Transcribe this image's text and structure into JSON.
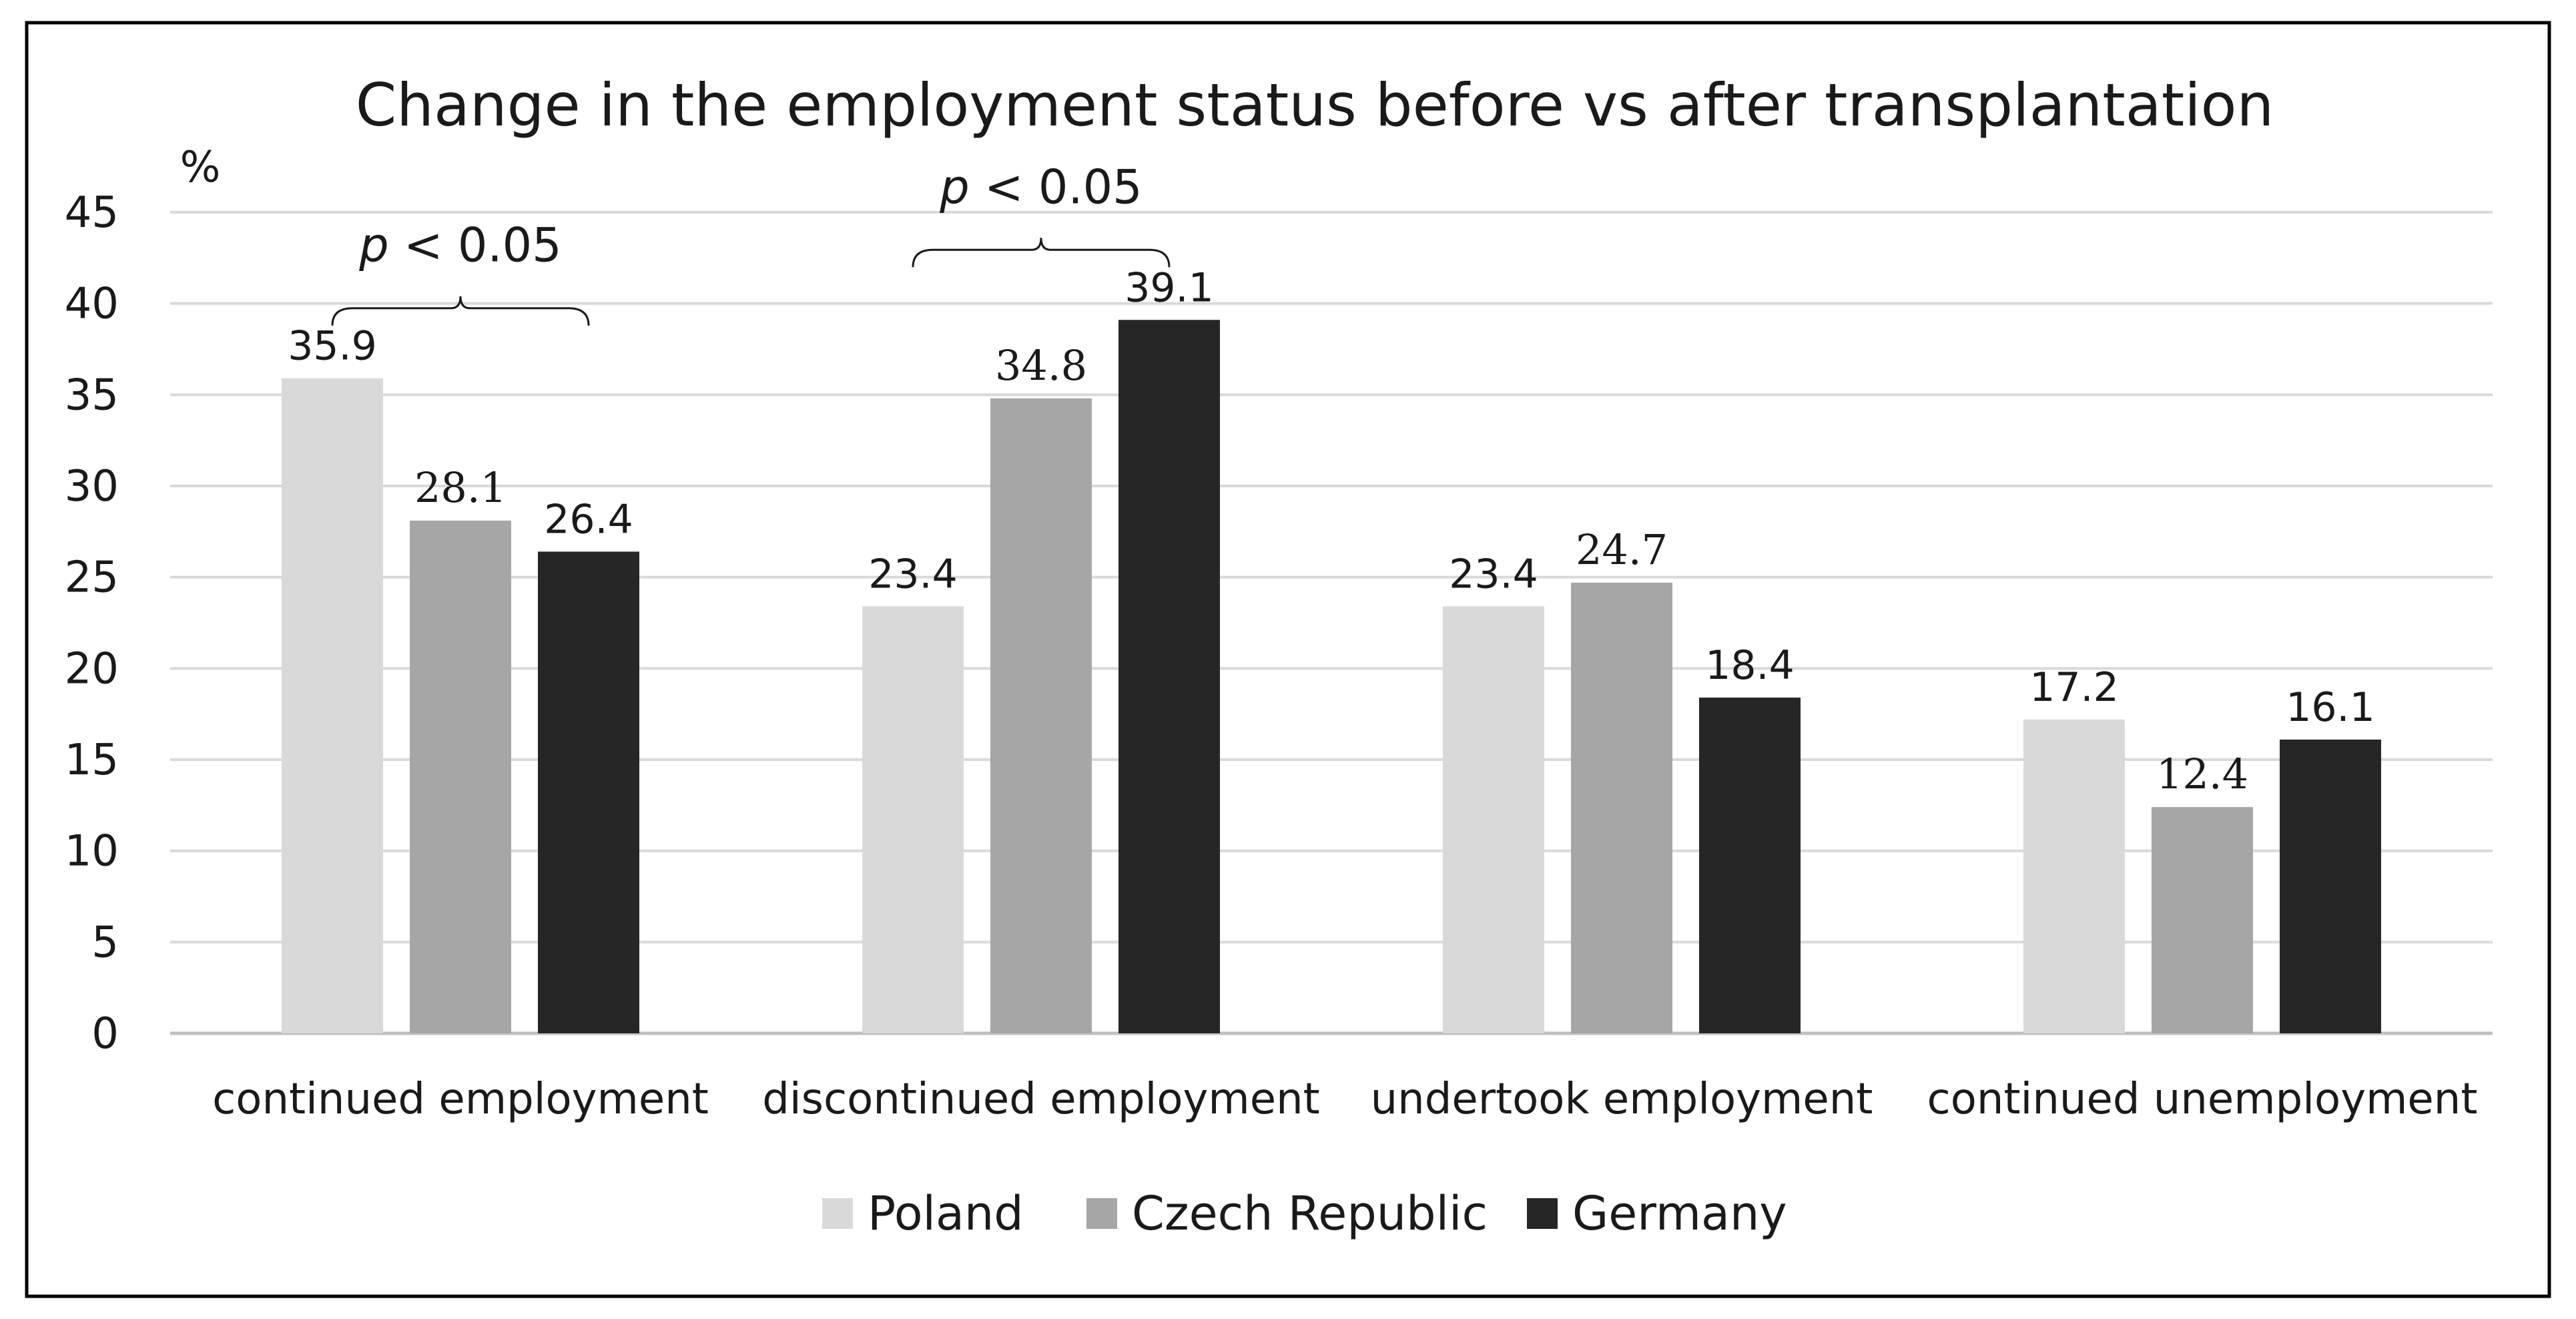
{
  "chart_data": {
    "type": "bar",
    "title": "Change in the employment status before vs after transplantation",
    "ylabel": "%",
    "xlabel": "",
    "ylim": [
      0,
      45
    ],
    "yticks": [
      0,
      5,
      10,
      15,
      20,
      25,
      30,
      35,
      40,
      45
    ],
    "grid": true,
    "legend_position": "bottom",
    "categories": [
      "continued employment",
      "discontinued employment",
      "undertook employment",
      "continued unemployment"
    ],
    "series": [
      {
        "name": "Poland",
        "color": "#d9d9d9",
        "values": [
          35.9,
          23.4,
          23.4,
          17.2
        ],
        "labels": [
          "35.9",
          "23.4",
          "23.4",
          "17.2"
        ]
      },
      {
        "name": "Czech Republic",
        "color": "#a6a6a6",
        "values": [
          28.1,
          34.8,
          24.7,
          12.4
        ],
        "labels": [
          "28.1",
          "34.8",
          "24.7",
          "12.4"
        ]
      },
      {
        "name": "Germany",
        "color": "#262626",
        "values": [
          26.4,
          39.1,
          18.4,
          16.1
        ],
        "labels": [
          "26.4",
          "39.1",
          "18.4",
          "16.1"
        ]
      }
    ],
    "annotations": [
      {
        "p_symbol": "p",
        "comparison": " < 0.05",
        "category_index": 0
      },
      {
        "p_symbol": "p",
        "comparison": " < 0.05",
        "category_index": 1
      }
    ]
  },
  "colors": {
    "gridline": "#d9d9d9",
    "axis": "#bfbfbf",
    "frame": "#000000",
    "text": "#1a1a1a"
  }
}
